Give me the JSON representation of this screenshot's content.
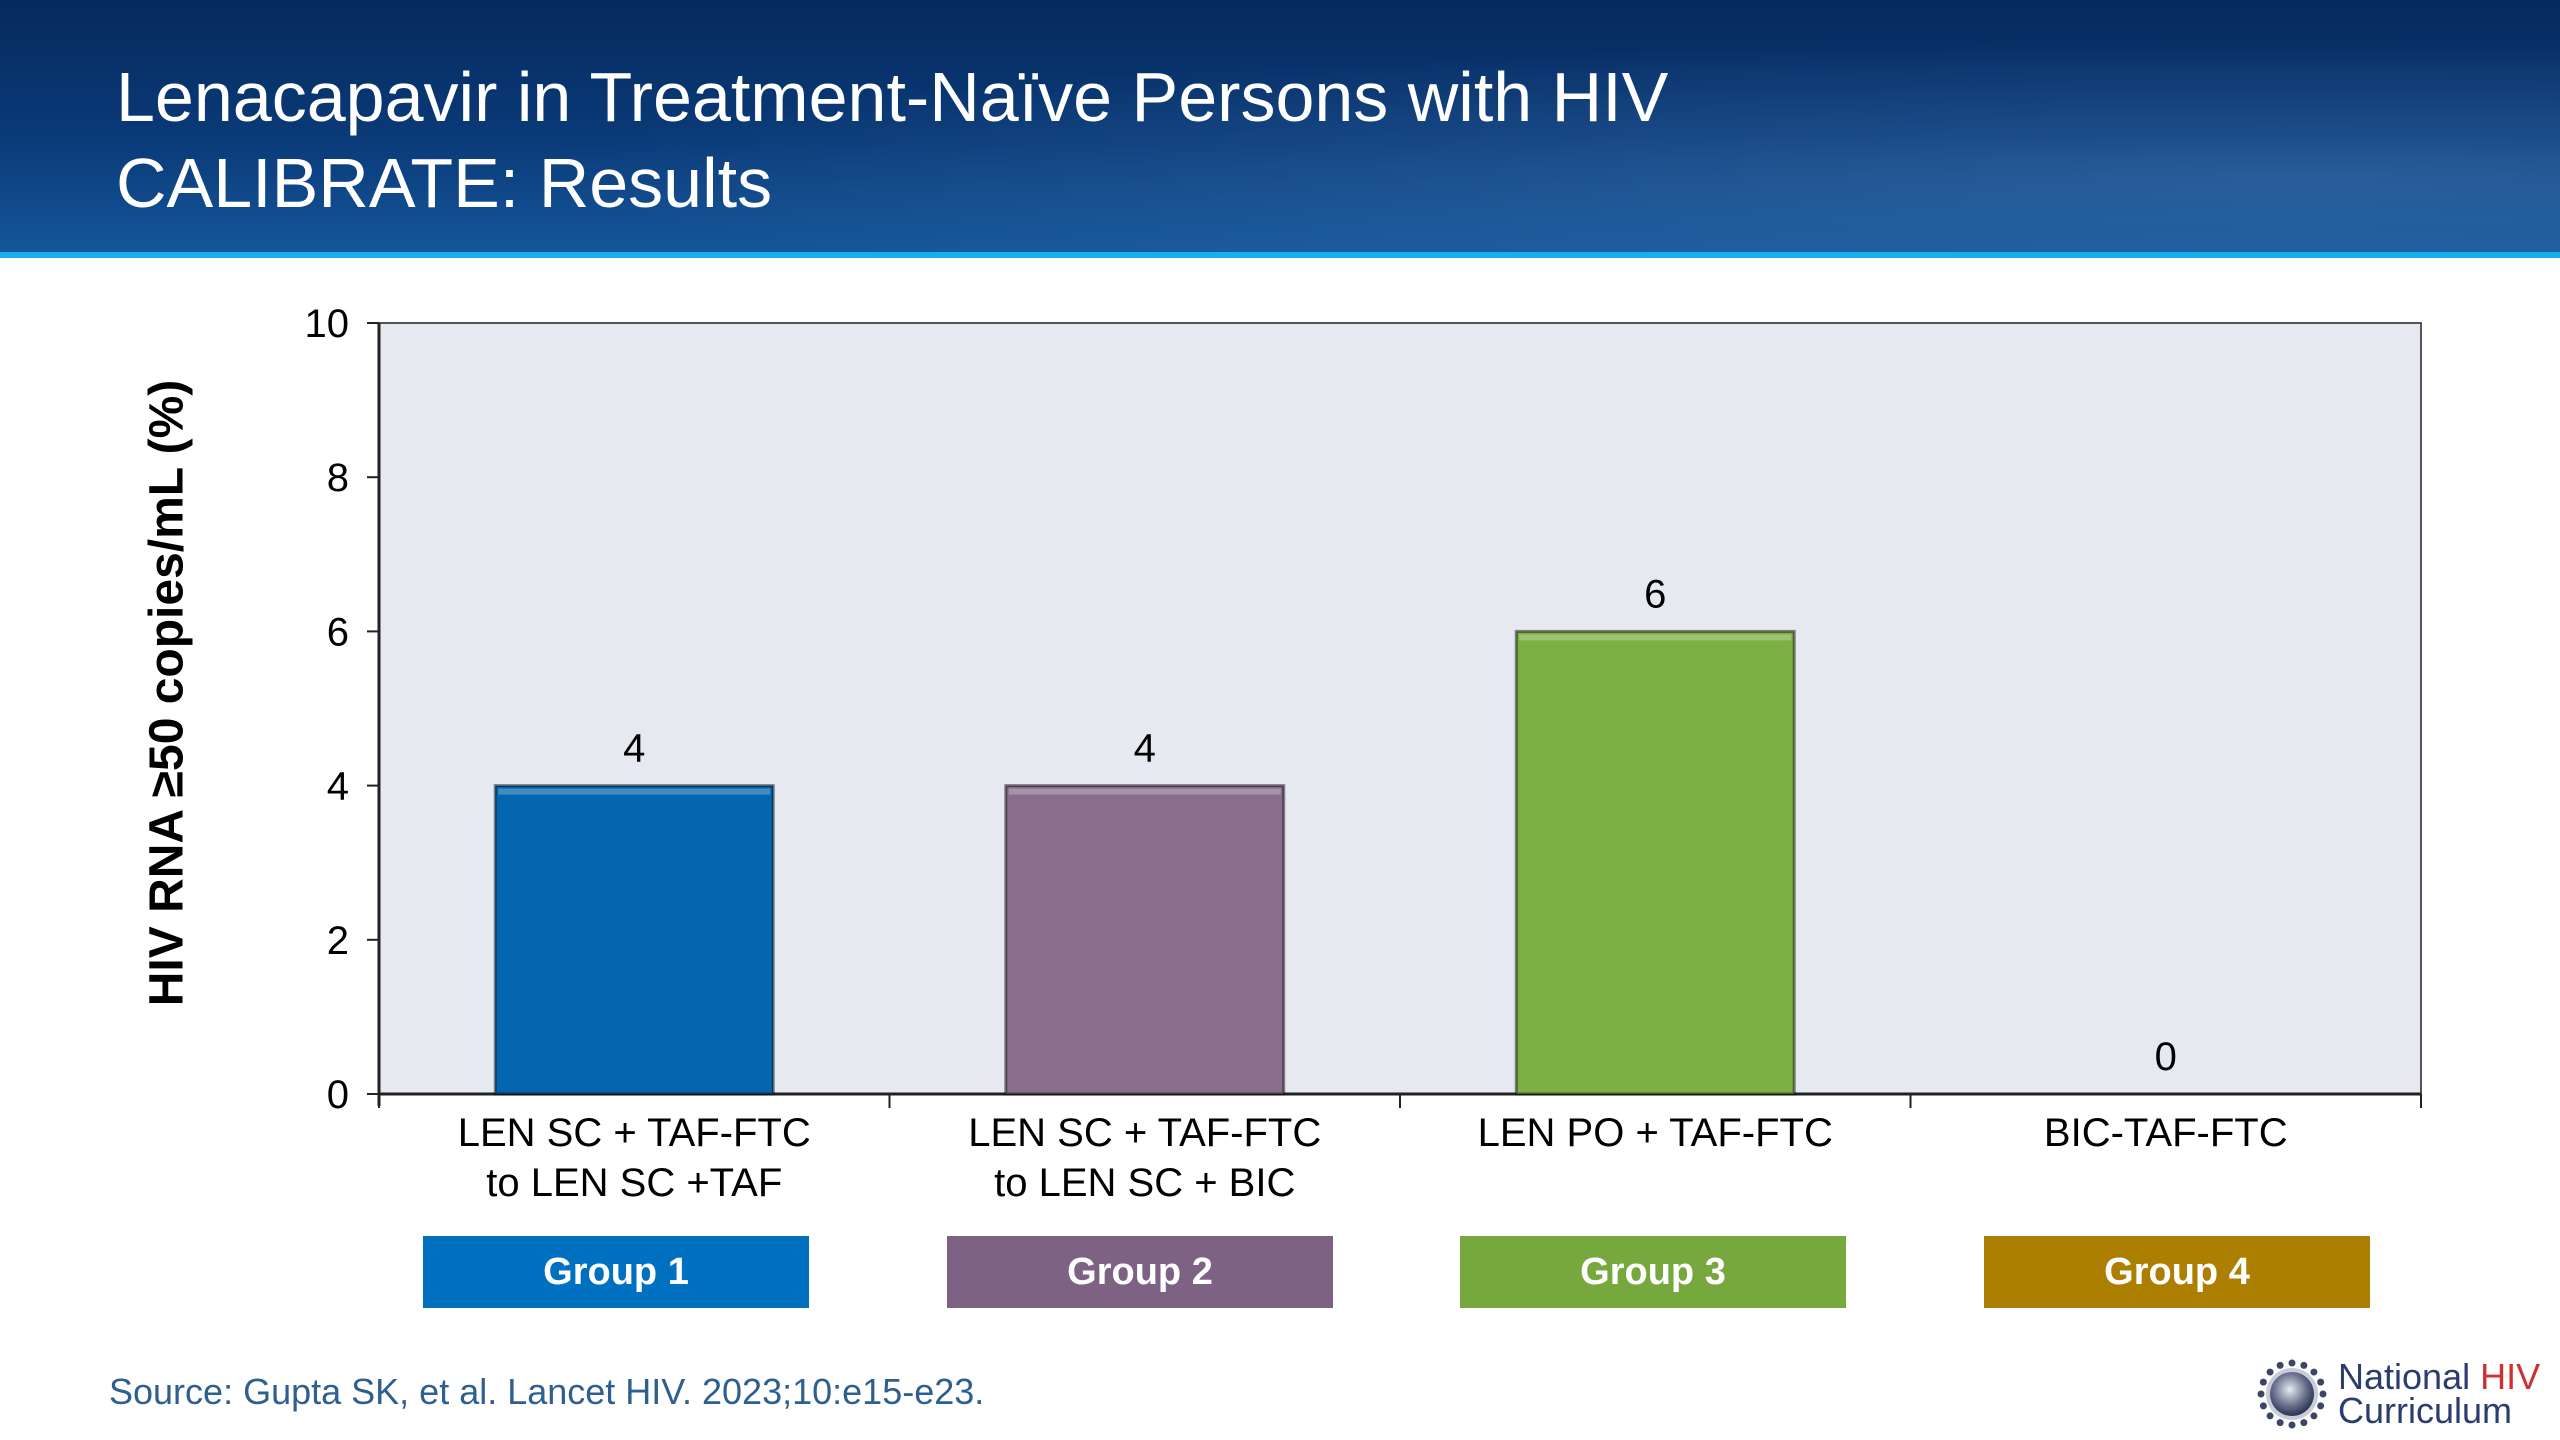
{
  "header": {
    "title_line1": "Lenacapavir in Treatment-Naïve Persons with HIV",
    "title_line2": "CALIBRATE: Results"
  },
  "chart_data": {
    "type": "bar",
    "title": "",
    "xlabel": "",
    "ylabel": "HIV RNA ≥50 copies/mL (%)",
    "ylim": [
      0,
      10
    ],
    "yticks": [
      0,
      2,
      4,
      6,
      8,
      10
    ],
    "grid": false,
    "categories": [
      "LEN SC + TAF-FTC to LEN SC +TAF",
      "LEN SC + TAF-FTC to LEN SC + BIC",
      "LEN PO + TAF-FTC",
      "BIC-TAF-FTC"
    ],
    "category_lines": [
      [
        "LEN SC + TAF-FTC",
        "to LEN SC +TAF"
      ],
      [
        "LEN SC + TAF-FTC",
        "to LEN SC + BIC"
      ],
      [
        "LEN PO + TAF-FTC"
      ],
      [
        "BIC-TAF-FTC"
      ]
    ],
    "values": [
      4,
      4,
      6,
      0
    ],
    "data_labels": [
      "4",
      "4",
      "6",
      "0"
    ],
    "bar_colors": [
      "#0466ae",
      "#8a6d8c",
      "#7db043",
      "#a97b04"
    ],
    "plot_background": "#e6e9f0",
    "groups": [
      {
        "label": "Group 1",
        "color": "#0070c0"
      },
      {
        "label": "Group 2",
        "color": "#7e6284"
      },
      {
        "label": "Group 3",
        "color": "#76a83d"
      },
      {
        "label": "Group 4",
        "color": "#ac7f00"
      }
    ]
  },
  "footer": {
    "source": "Source: Gupta SK, et al. Lancet HIV. 2023;10:e15-e23.",
    "logo_line1_a": "National ",
    "logo_line1_b": "HIV",
    "logo_line2": "Curriculum"
  }
}
